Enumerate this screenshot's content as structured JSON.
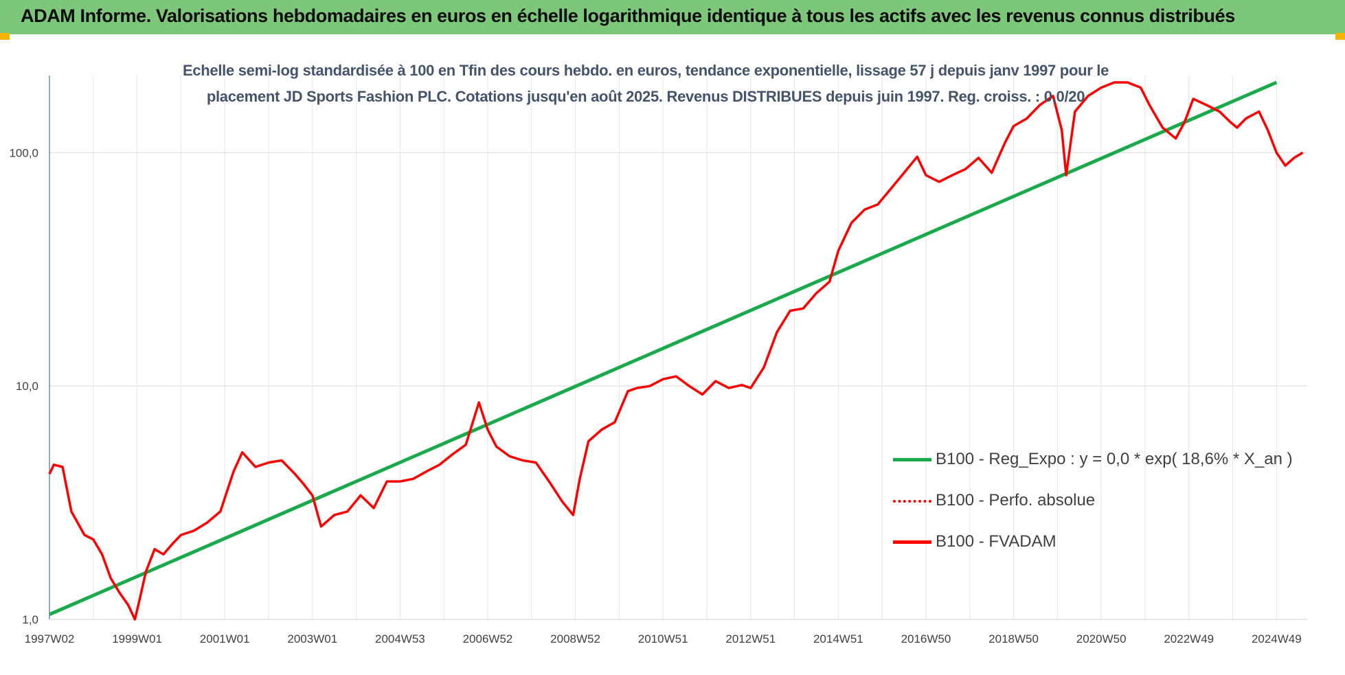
{
  "header": {
    "title": "ADAM Informe. Valorisations hebdomadaires en euros en échelle logarithmique identique à tous les actifs avec les revenus connus distribués",
    "background": "#7dc77a"
  },
  "chart_data": {
    "type": "line",
    "title_line1": "Echelle semi-log standardisée à 100 en Tfin des cours hebdo. en euros, tendance exponentielle, lissage 57 j depuis janv 1997 pour le",
    "title_line2": "placement JD Sports Fashion PLC. Cotations jusqu'en août 2025. Revenus DISTRIBUES depuis juin 1997. Reg. croiss. : 0,0/20",
    "y_scale": "log",
    "ylim": [
      1,
      200
    ],
    "y_ticks": [
      "1,0",
      "10,0",
      "100,0"
    ],
    "x_ticks": [
      "1997W02",
      "1999W01",
      "2001W01",
      "2003W01",
      "2004W53",
      "2006W52",
      "2008W52",
      "2010W51",
      "2012W51",
      "2014W51",
      "2016W50",
      "2018W50",
      "2020W50",
      "2022W49",
      "2024W49"
    ],
    "x_tick_years": [
      1997.0,
      1999.0,
      2001.0,
      2003.0,
      2005.0,
      2007.0,
      2009.0,
      2011.0,
      2013.0,
      2015.0,
      2017.0,
      2019.0,
      2021.0,
      2023.0,
      2025.0
    ],
    "xlim": [
      1997.0,
      2025.7
    ],
    "grid": true,
    "legend_position": "right",
    "series": [
      {
        "name": "B100 - Reg_Expo : y = 0,0 * exp( 18,6% *  X_an )",
        "color": "#1aaa4b",
        "style": "solid",
        "x": [
          1997.0,
          2025.0
        ],
        "y": [
          1.05,
          200
        ]
      },
      {
        "name": "B100 - Perfo. absolue",
        "color": "#ff0000",
        "style": "dotted",
        "x": [],
        "y": []
      },
      {
        "name": "B100 - FVADAM",
        "color": "#ff0000",
        "style": "solid",
        "x": [
          1997.0,
          1997.1,
          1997.3,
          1997.5,
          1997.8,
          1998.0,
          1998.2,
          1998.4,
          1998.6,
          1998.8,
          1998.95,
          1999.05,
          1999.2,
          1999.4,
          1999.6,
          1999.8,
          2000.0,
          2000.3,
          2000.6,
          2000.9,
          2001.2,
          2001.4,
          2001.7,
          2002.0,
          2002.3,
          2002.6,
          2002.8,
          2003.0,
          2003.2,
          2003.5,
          2003.8,
          2004.1,
          2004.4,
          2004.7,
          2005.0,
          2005.3,
          2005.6,
          2005.9,
          2006.2,
          2006.5,
          2006.8,
          2007.0,
          2007.2,
          2007.5,
          2007.8,
          2008.1,
          2008.4,
          2008.7,
          2008.95,
          2009.1,
          2009.3,
          2009.6,
          2009.9,
          2010.2,
          2010.4,
          2010.7,
          2011.0,
          2011.3,
          2011.6,
          2011.9,
          2012.2,
          2012.5,
          2012.8,
          2013.0,
          2013.3,
          2013.6,
          2013.9,
          2014.2,
          2014.5,
          2014.8,
          2015.0,
          2015.3,
          2015.6,
          2015.9,
          2016.2,
          2016.5,
          2016.8,
          2017.0,
          2017.3,
          2017.6,
          2017.9,
          2018.2,
          2018.5,
          2018.8,
          2019.0,
          2019.3,
          2019.6,
          2019.9,
          2020.1,
          2020.2,
          2020.4,
          2020.7,
          2021.0,
          2021.3,
          2021.6,
          2021.9,
          2022.1,
          2022.4,
          2022.7,
          2022.9,
          2023.1,
          2023.4,
          2023.7,
          2023.95,
          2024.1,
          2024.3,
          2024.6,
          2024.8,
          2025.0,
          2025.2,
          2025.4,
          2025.6
        ],
        "y": [
          4.2,
          4.6,
          4.5,
          2.9,
          2.3,
          2.2,
          1.9,
          1.5,
          1.3,
          1.15,
          1.0,
          1.2,
          1.6,
          2.0,
          1.9,
          2.1,
          2.3,
          2.4,
          2.6,
          2.9,
          4.3,
          5.2,
          4.5,
          4.7,
          4.8,
          4.2,
          3.8,
          3.4,
          2.5,
          2.8,
          2.9,
          3.4,
          3.0,
          3.9,
          3.9,
          4.0,
          4.3,
          4.6,
          5.1,
          5.6,
          8.5,
          6.5,
          5.5,
          5.0,
          4.8,
          4.7,
          3.9,
          3.2,
          2.8,
          4.0,
          5.8,
          6.5,
          7.0,
          9.5,
          9.8,
          10.0,
          10.7,
          11.0,
          10.0,
          9.2,
          10.5,
          9.8,
          10.1,
          9.8,
          12.0,
          17.0,
          21.0,
          21.5,
          25.0,
          28.0,
          38.0,
          50.0,
          57.0,
          60.0,
          70.0,
          82.0,
          96.0,
          80.0,
          75.0,
          80.0,
          85.0,
          95.0,
          82.0,
          110.0,
          130.0,
          140.0,
          160.0,
          175.0,
          125.0,
          80.0,
          150.0,
          175.0,
          190.0,
          200.0,
          200.0,
          190.0,
          160.0,
          128.0,
          115.0,
          135.0,
          170.0,
          160.0,
          150.0,
          135.0,
          128.0,
          140.0,
          150.0,
          125.0,
          100.0,
          88.0,
          95.0,
          100.0
        ]
      }
    ]
  }
}
